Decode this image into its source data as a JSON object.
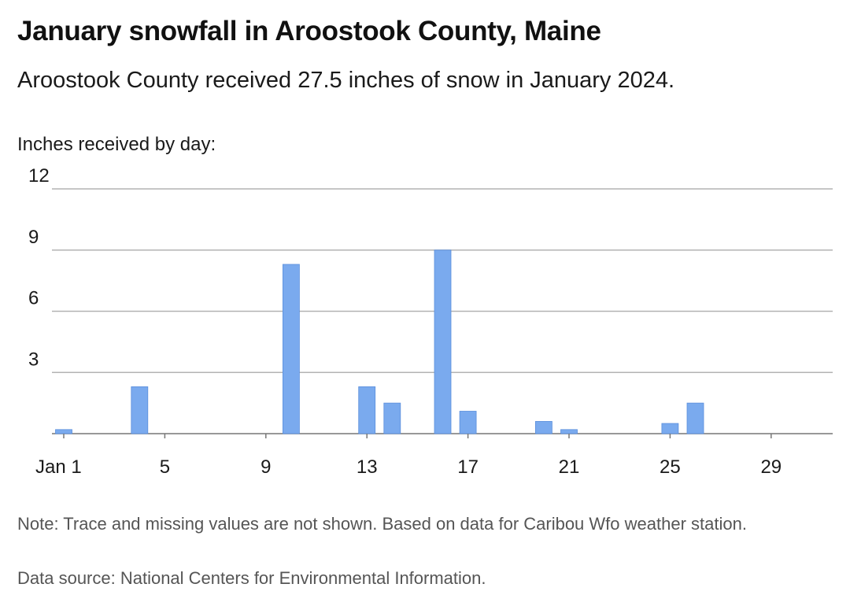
{
  "chart_data": {
    "type": "bar",
    "title": "January snowfall in Aroostook County, Maine",
    "subtitle": "Aroostook County received 27.5 inches of snow in January 2024.",
    "ylabel": "Inches received by day:",
    "ylim": [
      0,
      12
    ],
    "yticks": [
      3,
      6,
      9,
      12
    ],
    "grid": true,
    "x": [
      1,
      2,
      3,
      4,
      5,
      6,
      7,
      8,
      9,
      10,
      11,
      12,
      13,
      14,
      15,
      16,
      17,
      18,
      19,
      20,
      21,
      22,
      23,
      24,
      25,
      26,
      27,
      28,
      29,
      30,
      31
    ],
    "values": [
      0.2,
      0,
      0,
      2.3,
      0,
      0,
      0,
      0,
      0,
      8.3,
      0,
      0,
      2.3,
      1.5,
      0,
      9.0,
      1.1,
      0,
      0,
      0.6,
      0.2,
      0,
      0,
      0,
      0.5,
      1.5,
      0,
      0,
      0,
      0,
      0
    ],
    "xticks": [
      {
        "day": 1,
        "label": "Jan 1"
      },
      {
        "day": 5,
        "label": "5"
      },
      {
        "day": 9,
        "label": "9"
      },
      {
        "day": 13,
        "label": "13"
      },
      {
        "day": 17,
        "label": "17"
      },
      {
        "day": 21,
        "label": "21"
      },
      {
        "day": 25,
        "label": "25"
      },
      {
        "day": 29,
        "label": "29"
      }
    ],
    "bar_color": "#7aaaee"
  },
  "footer": {
    "note": "Note: Trace and missing values are not shown. Based on data for Caribou Wfo weather station.",
    "source": "Data source: National Centers for Environmental Information."
  }
}
